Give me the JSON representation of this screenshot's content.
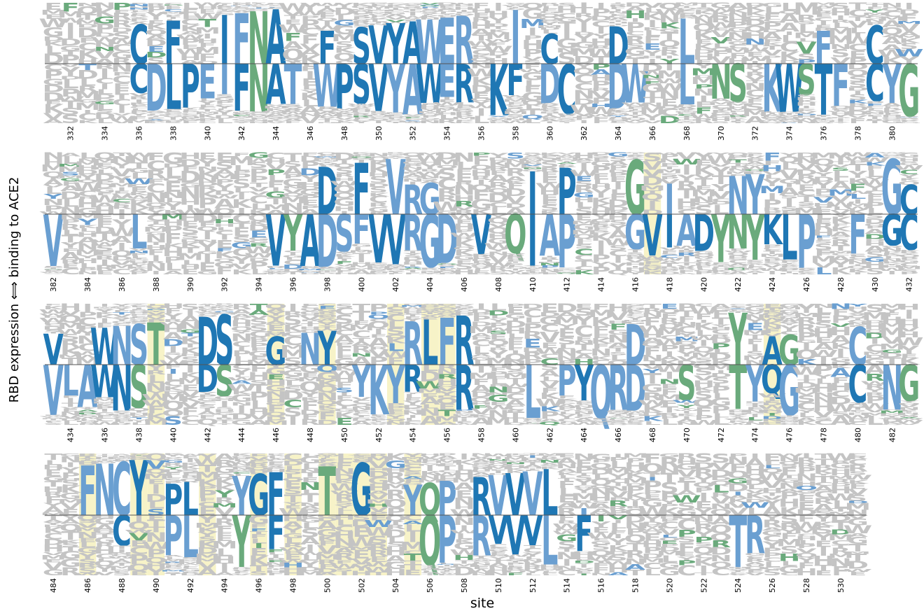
{
  "chart_data": {
    "type": "sequence-logo",
    "xlabel": "site",
    "ylabel": "RBD expression ⟺ binding to ACE2",
    "colors": {
      "strong": "#1f77b4",
      "medium": "#6a9fd1",
      "green": "#6aaa7c",
      "gray": "#c4c4c4",
      "highlight": "#f7f3c8",
      "baseline": "#555555"
    },
    "rows": [
      {
        "sites": [
          331,
          332,
          333,
          334,
          335,
          336,
          337,
          338,
          339,
          340,
          341,
          342,
          343,
          344,
          345,
          346,
          347,
          348,
          349,
          350,
          351,
          352,
          353,
          354,
          355,
          356,
          357,
          358,
          359,
          360,
          361,
          362,
          363,
          364,
          365,
          366,
          367,
          368,
          369,
          370,
          371,
          372,
          373,
          374,
          375,
          376,
          377,
          378,
          379,
          380,
          381
        ],
        "highlighted": [],
        "top": {
          "336": "C",
          "338": "F",
          "341": "I",
          "342": "F",
          "343": "N",
          "344": "A",
          "347": "F",
          "349": "S",
          "350": "V",
          "351": "Y",
          "352": "A",
          "353": "W",
          "354": "E",
          "355": "R",
          "358": "I",
          "360": "C",
          "364": "D",
          "368": "L",
          "376": "F",
          "379": "C"
        },
        "bottom": {
          "336": "C",
          "337": "D",
          "338": "L",
          "339": "P",
          "340": "E",
          "341": "I",
          "342": "F",
          "343": "N",
          "344": "A",
          "345": "T",
          "347": "W",
          "348": "P",
          "349": "S",
          "350": "V",
          "351": "Y",
          "352": "A",
          "353": "W",
          "354": "E",
          "355": "R",
          "357": "K",
          "358": "F",
          "360": "D",
          "361": "C",
          "364": "D",
          "365": "W",
          "368": "L",
          "370": "N",
          "371": "S",
          "373": "K",
          "374": "W",
          "375": "S",
          "376": "T",
          "377": "F",
          "379": "C",
          "380": "Y",
          "381": "G"
        },
        "labeled_ticks": [
          "332",
          "334",
          "336",
          "338",
          "340",
          "342",
          "344",
          "346",
          "348",
          "350",
          "352",
          "354",
          "356",
          "358",
          "360",
          "362",
          "364",
          "366",
          "368",
          "370",
          "372",
          "374",
          "376",
          "378",
          "380"
        ]
      },
      {
        "sites": [
          382,
          383,
          384,
          385,
          386,
          387,
          388,
          389,
          390,
          391,
          392,
          393,
          394,
          395,
          396,
          397,
          398,
          399,
          400,
          401,
          402,
          403,
          404,
          405,
          406,
          407,
          408,
          409,
          410,
          411,
          412,
          413,
          414,
          415,
          416,
          417,
          418,
          419,
          420,
          421,
          422,
          423,
          424,
          425,
          426,
          427,
          428,
          429,
          430,
          431,
          432
        ],
        "highlighted": [
          417
        ],
        "top": {
          "398": "D",
          "400": "F",
          "402": "V",
          "403": "R",
          "404": "G",
          "410": "I",
          "412": "P",
          "416": "G",
          "418": "I",
          "422": "N",
          "423": "Y",
          "431": "G",
          "432": "C"
        },
        "bottom": {
          "382": "V",
          "387": "L",
          "395": "V",
          "396": "Y",
          "397": "A",
          "398": "D",
          "399": "S",
          "400": "F",
          "401": "V",
          "402": "V",
          "403": "R",
          "404": "G",
          "405": "D",
          "407": "V",
          "409": "Q",
          "410": "I",
          "411": "A",
          "412": "P",
          "416": "G",
          "417": "V",
          "418": "I",
          "419": "A",
          "420": "D",
          "421": "Y",
          "422": "N",
          "423": "Y",
          "424": "K",
          "425": "L",
          "426": "P",
          "429": "F",
          "431": "G",
          "432": "C"
        },
        "labeled_ticks": [
          "382",
          "384",
          "386",
          "388",
          "390",
          "392",
          "394",
          "396",
          "398",
          "400",
          "402",
          "404",
          "406",
          "408",
          "410",
          "412",
          "414",
          "416",
          "418",
          "420",
          "422",
          "424",
          "426",
          "428",
          "430",
          "432"
        ]
      },
      {
        "sites": [
          433,
          434,
          435,
          436,
          437,
          438,
          439,
          440,
          441,
          442,
          443,
          444,
          445,
          446,
          447,
          448,
          449,
          450,
          451,
          452,
          453,
          454,
          455,
          456,
          457,
          458,
          459,
          460,
          461,
          462,
          463,
          464,
          465,
          466,
          467,
          468,
          469,
          470,
          471,
          472,
          473,
          474,
          475,
          476,
          477,
          478,
          479,
          480,
          481,
          482,
          483
        ],
        "highlighted": [
          439,
          446,
          449,
          453,
          455,
          456,
          475
        ],
        "top": {
          "433": "V",
          "436": "W",
          "437": "N",
          "438": "S",
          "439": "T",
          "442": "D",
          "443": "S",
          "446": "G",
          "448": "N",
          "449": "Y",
          "454": "R",
          "455": "L",
          "456": "F",
          "457": "R",
          "467": "D",
          "473": "Y",
          "475": "A",
          "476": "G",
          "480": "C"
        },
        "bottom": {
          "433": "V",
          "434": "L",
          "435": "A",
          "436": "W",
          "437": "N",
          "438": "S",
          "442": "D",
          "443": "S",
          "451": "Y",
          "452": "K",
          "453": "Y",
          "454": "R",
          "457": "R",
          "461": "L",
          "463": "P",
          "464": "Y",
          "465": "Q",
          "466": "R",
          "467": "D",
          "470": "S",
          "473": "T",
          "474": "Y",
          "475": "Q",
          "476": "G",
          "480": "C",
          "482": "N",
          "483": "G"
        },
        "labeled_ticks": [
          "434",
          "436",
          "438",
          "440",
          "442",
          "444",
          "446",
          "448",
          "450",
          "452",
          "454",
          "456",
          "458",
          "460",
          "462",
          "464",
          "466",
          "468",
          "470",
          "472",
          "474",
          "476",
          "478",
          "480",
          "482"
        ]
      },
      {
        "sites": [
          484,
          485,
          486,
          487,
          488,
          489,
          490,
          491,
          492,
          493,
          494,
          495,
          496,
          497,
          498,
          499,
          500,
          501,
          502,
          503,
          504,
          505,
          506,
          507,
          508,
          509,
          510,
          511,
          512,
          513,
          514,
          515,
          516,
          517,
          518,
          519,
          520,
          521,
          522,
          523,
          524,
          525,
          526,
          527,
          528,
          529,
          530,
          531
        ],
        "highlighted": [
          486,
          489,
          490,
          493,
          496,
          498,
          500,
          501,
          502,
          503,
          505
        ],
        "top": {
          "486": "F",
          "487": "N",
          "488": "C",
          "489": "Y",
          "491": "P",
          "492": "L",
          "495": "Y",
          "496": "G",
          "497": "F",
          "500": "T",
          "502": "G",
          "505": "Y",
          "506": "Q",
          "507": "P",
          "509": "R",
          "510": "V",
          "511": "V",
          "512": "V",
          "513": "L"
        },
        "bottom": {
          "488": "C",
          "491": "P",
          "492": "L",
          "495": "Y",
          "497": "F",
          "506": "Q",
          "507": "P",
          "509": "R",
          "510": "V",
          "511": "V",
          "512": "V",
          "513": "L",
          "515": "F",
          "524": "T",
          "525": "R"
        },
        "labeled_ticks": [
          "484",
          "486",
          "488",
          "490",
          "492",
          "494",
          "496",
          "498",
          "500",
          "502",
          "504",
          "506",
          "508",
          "510",
          "512",
          "514",
          "516",
          "518",
          "520",
          "522",
          "524",
          "526",
          "528",
          "530"
        ]
      }
    ]
  }
}
